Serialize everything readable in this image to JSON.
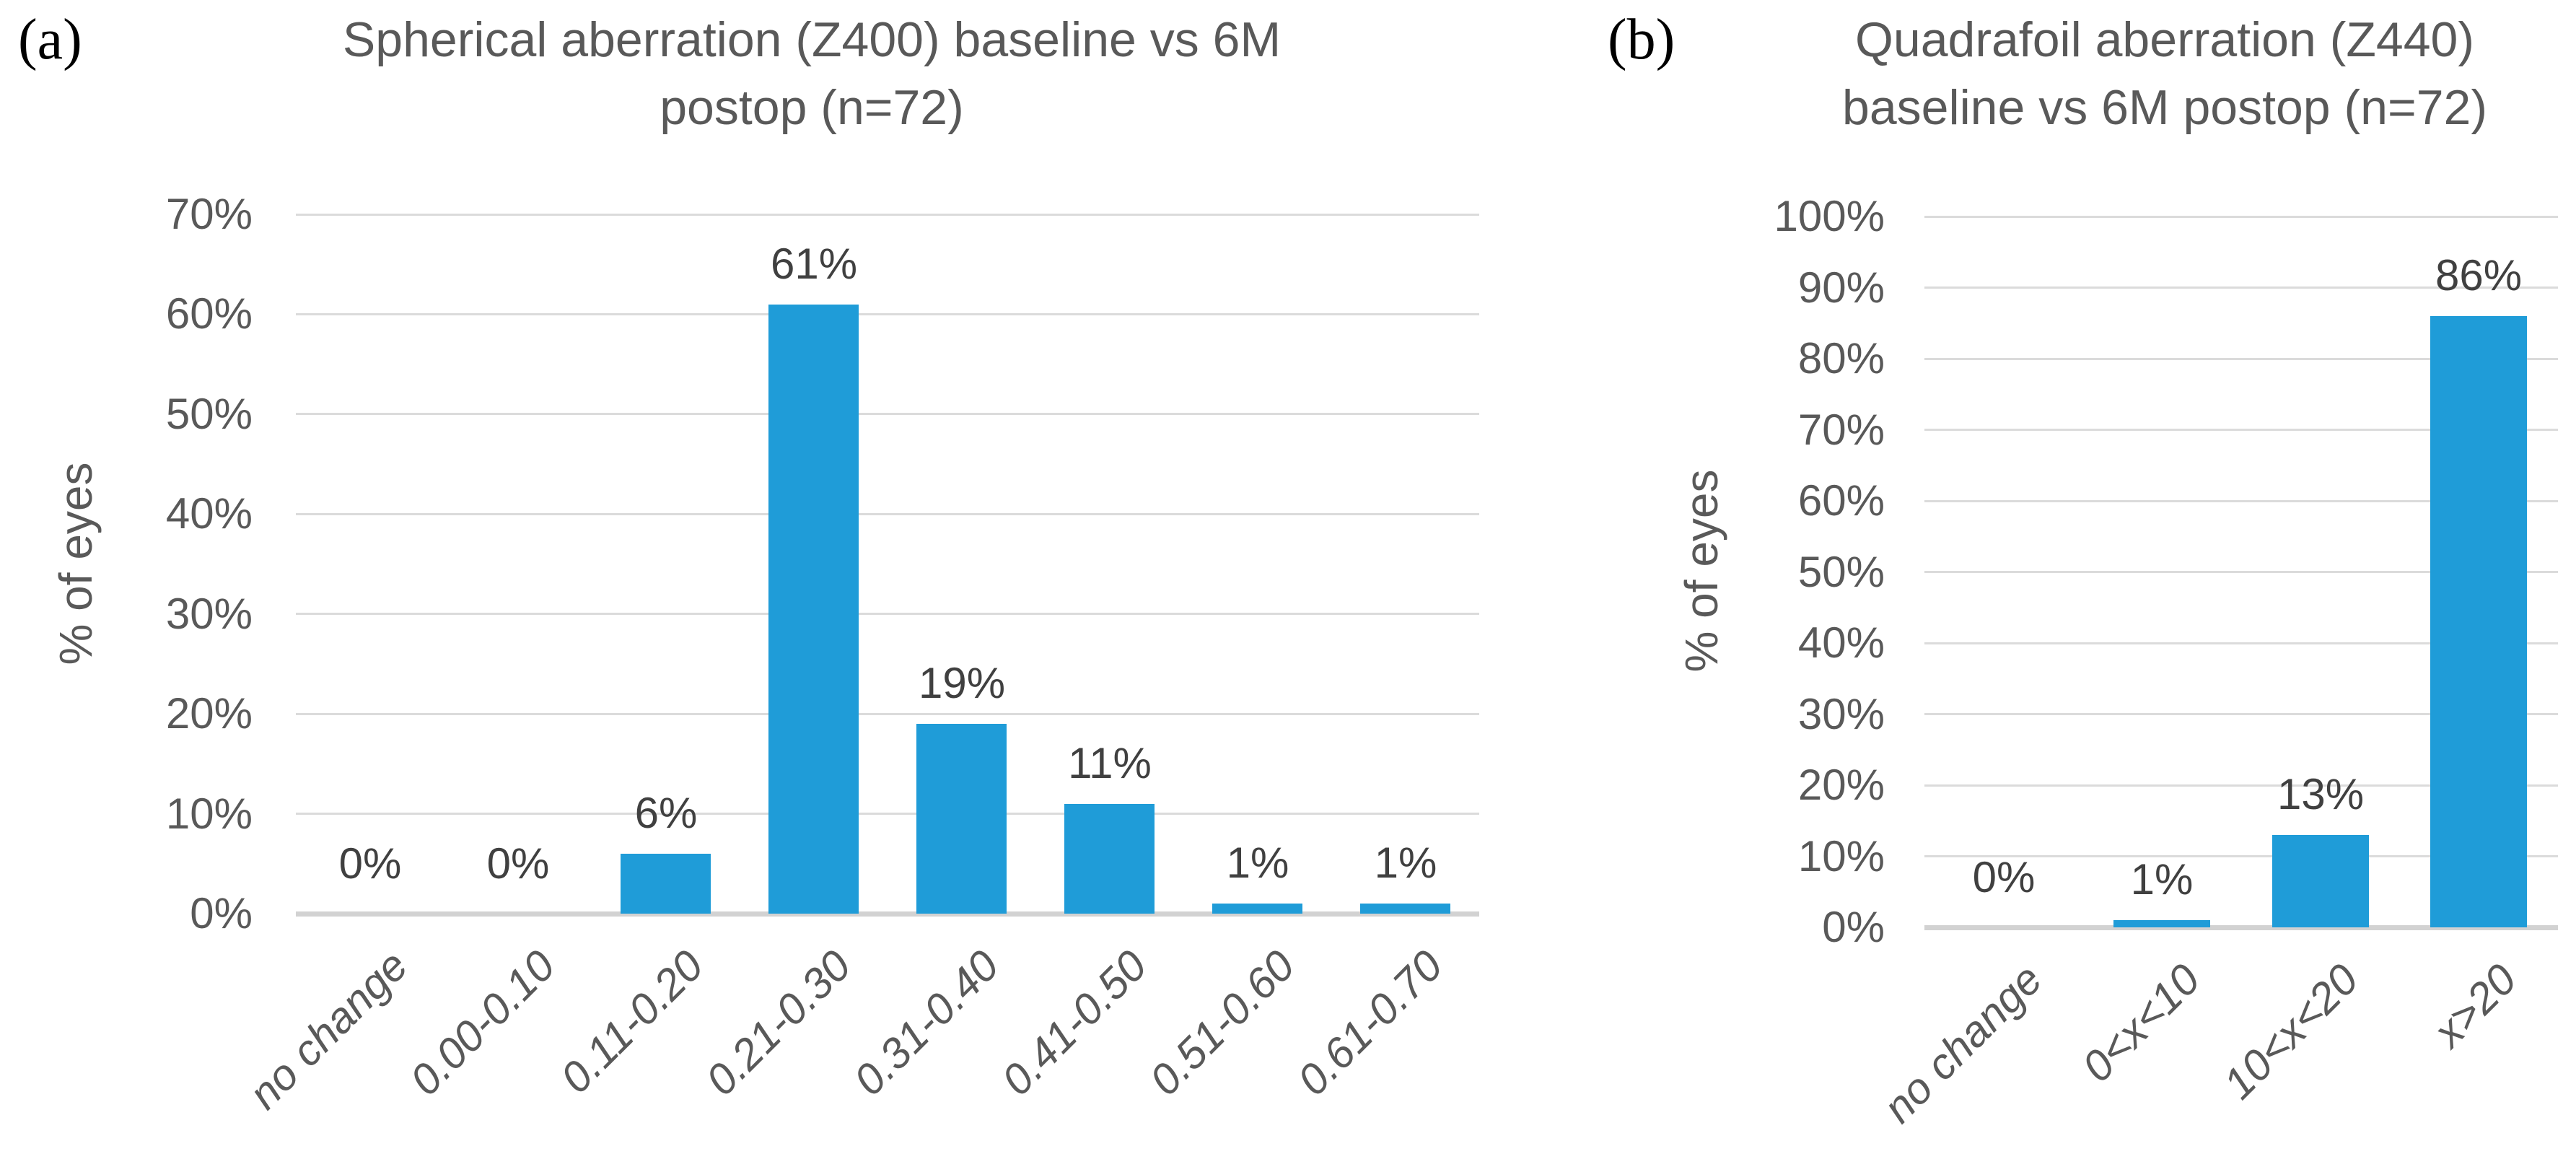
{
  "figure": {
    "panels": [
      {
        "panel_label": "(a)",
        "title_lines": [
          "Spherical aberration (Z400) baseline vs 6M",
          "postop (n=72)"
        ]
      },
      {
        "panel_label": "(b)",
        "title_lines": [
          "Quadrafoil aberration (Z440)",
          "baseline vs 6M postop (n=72)"
        ]
      }
    ]
  },
  "chart_data": [
    {
      "type": "bar",
      "title": "Spherical aberration (Z400) baseline vs 6M postop (n=72)",
      "categories": [
        "no change",
        "0.00-0.10",
        "0.11-0.20",
        "0.21-0.30",
        "0.31-0.40",
        "0.41-0.50",
        "0.51-0.60",
        "0.61-0.70"
      ],
      "values": [
        0,
        0,
        6,
        61,
        19,
        11,
        1,
        1
      ],
      "value_labels": [
        "0%",
        "0%",
        "6%",
        "61%",
        "19%",
        "11%",
        "1%",
        "1%"
      ],
      "xlabel": "",
      "ylabel": "% of eyes",
      "ylim": [
        0,
        70
      ],
      "ytick_step": 10,
      "ytick_labels": [
        "0%",
        "10%",
        "20%",
        "30%",
        "40%",
        "50%",
        "60%",
        "70%"
      ],
      "grid": true,
      "legend": "none",
      "bar_color": "#1F9CD8"
    },
    {
      "type": "bar",
      "title": "Quadrafoil aberration (Z440) baseline vs 6M postop (n=72)",
      "categories": [
        "no change",
        "0<x<10",
        "10<x<20",
        "x>20"
      ],
      "values": [
        0,
        1,
        13,
        86
      ],
      "value_labels": [
        "0%",
        "1%",
        "13%",
        "86%"
      ],
      "xlabel": "",
      "ylabel": "% of eyes",
      "ylim": [
        0,
        100
      ],
      "ytick_step": 10,
      "ytick_labels": [
        "0%",
        "10%",
        "20%",
        "30%",
        "40%",
        "50%",
        "60%",
        "70%",
        "80%",
        "90%",
        "100%"
      ],
      "grid": true,
      "legend": "none",
      "bar_color": "#1F9CD8"
    }
  ],
  "colors": {
    "bar": "#1F9CD8",
    "gridline": "#dbdbdb",
    "axis_line": "#d2d2d2",
    "text": "#595959",
    "data_label": "#404040",
    "panel_label": "#000000",
    "background": "#ffffff"
  }
}
